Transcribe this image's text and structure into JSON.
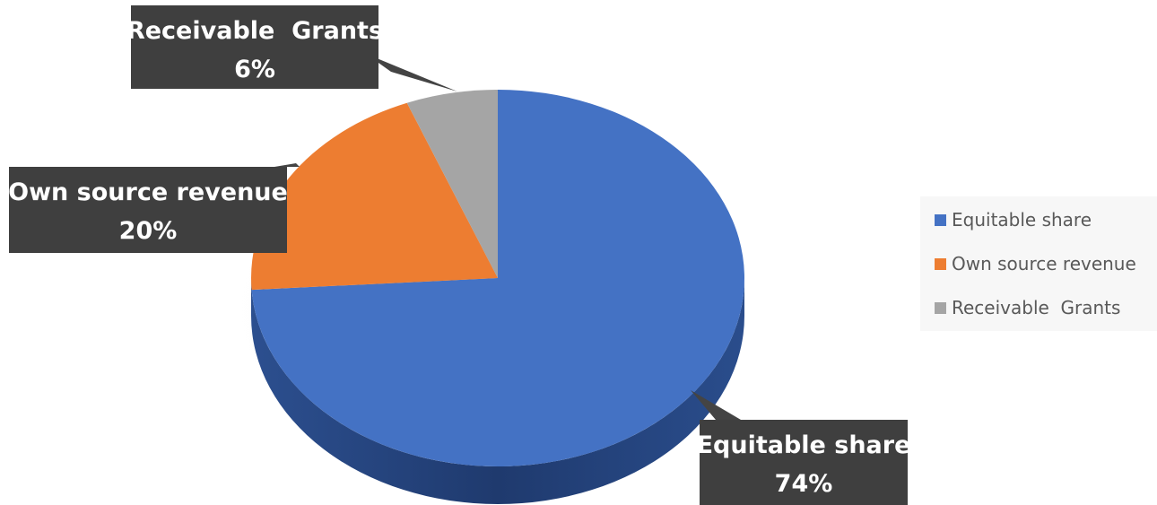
{
  "chart_data": {
    "type": "pie",
    "title": "",
    "categories": [
      "Equitable share",
      "Own source revenue",
      "Receivable  Grants"
    ],
    "values": [
      74,
      20,
      6
    ],
    "labels": [
      {
        "name": "Equitable share",
        "percent": "74%"
      },
      {
        "name": "Own source revenue",
        "percent": "20%"
      },
      {
        "name": "Receivable  Grants",
        "percent": "6%"
      }
    ],
    "colors": [
      "#4472C4",
      "#ED7D31",
      "#A5A5A5"
    ],
    "legend": {
      "position": "right",
      "items": [
        "Equitable share",
        "Own source revenue",
        "Receivable  Grants"
      ]
    }
  }
}
